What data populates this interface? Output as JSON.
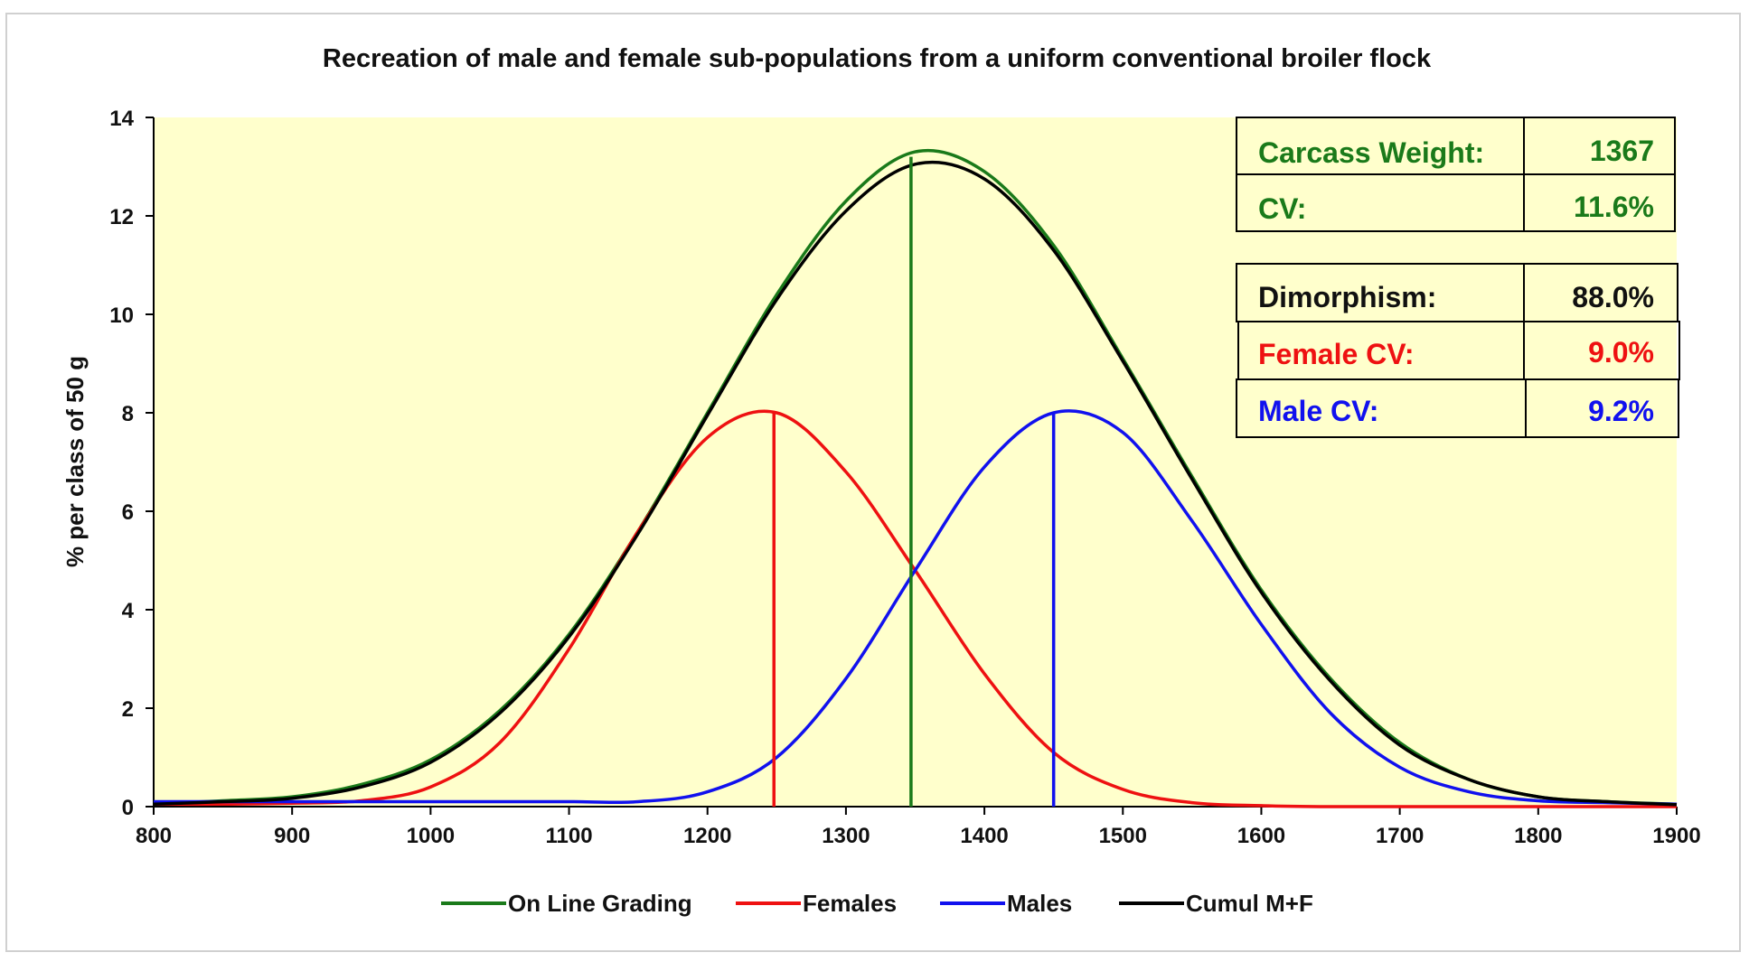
{
  "chart_data": {
    "type": "line",
    "title": "Recreation of male and female sub-populations from a uniform conventional broiler flock",
    "xlabel": "",
    "ylabel": "% per class of 50 g",
    "xlim": [
      800,
      1900
    ],
    "ylim": [
      0,
      14
    ],
    "x_ticks": [
      "800",
      "900",
      "1000",
      "1100",
      "1200",
      "1300",
      "1400",
      "1500",
      "1600",
      "1700",
      "1800",
      "1900"
    ],
    "y_ticks": [
      "0",
      "2",
      "4",
      "6",
      "8",
      "10",
      "12",
      "14"
    ],
    "x": [
      800,
      850,
      900,
      950,
      1000,
      1050,
      1100,
      1150,
      1200,
      1250,
      1300,
      1350,
      1400,
      1450,
      1500,
      1550,
      1600,
      1650,
      1700,
      1750,
      1800,
      1850,
      1900
    ],
    "series": [
      {
        "name": "On Line Grading",
        "color": "#1a7a1a",
        "values": [
          0.05,
          0.12,
          0.2,
          0.45,
          0.95,
          1.95,
          3.5,
          5.6,
          8.0,
          10.4,
          12.3,
          13.3,
          12.9,
          11.4,
          9.1,
          6.7,
          4.4,
          2.6,
          1.3,
          0.55,
          0.2,
          0.1,
          0.05
        ]
      },
      {
        "name": "Females",
        "color": "#ee1111",
        "values": [
          0.05,
          0.05,
          0.07,
          0.12,
          0.4,
          1.3,
          3.2,
          5.6,
          7.5,
          8.0,
          6.8,
          4.8,
          2.7,
          1.1,
          0.35,
          0.08,
          0.02,
          0.0,
          0.0,
          0.0,
          0.0,
          0.0,
          0.0
        ]
      },
      {
        "name": "Males",
        "color": "#1111ee",
        "values": [
          0.1,
          0.1,
          0.1,
          0.1,
          0.1,
          0.1,
          0.1,
          0.1,
          0.3,
          1.0,
          2.6,
          4.8,
          6.9,
          8.0,
          7.6,
          5.8,
          3.7,
          1.9,
          0.8,
          0.3,
          0.12,
          0.08,
          0.05
        ]
      },
      {
        "name": "Cumul M+F",
        "color": "#000000",
        "values": [
          0.05,
          0.1,
          0.17,
          0.4,
          0.9,
          1.9,
          3.45,
          5.55,
          7.95,
          10.3,
          12.1,
          13.05,
          12.75,
          11.3,
          9.05,
          6.65,
          4.35,
          2.55,
          1.25,
          0.55,
          0.2,
          0.1,
          0.04
        ]
      }
    ],
    "markers": [
      {
        "name": "On Line Grading mean",
        "x": 1347,
        "y": 13.2,
        "color": "#1a7a1a"
      },
      {
        "name": "Females mean",
        "x": 1248,
        "y": 8.0,
        "color": "#ee1111"
      },
      {
        "name": "Males mean",
        "x": 1450,
        "y": 8.0,
        "color": "#1111ee"
      }
    ],
    "legend_position": "bottom",
    "background_color": "#ffffcc"
  },
  "stats": {
    "carcass_weight_label": "Carcass Weight:",
    "carcass_weight_value": "1367",
    "cv_label": "CV:",
    "cv_value": "11.6%",
    "dimorphism_label": "Dimorphism:",
    "dimorphism_value": "88.0%",
    "female_cv_label": "Female CV:",
    "female_cv_value": "9.0%",
    "male_cv_label": "Male CV:",
    "male_cv_value": "9.2%",
    "colors": {
      "green": "#1a7a1a",
      "black": "#111111",
      "red": "#ee1111",
      "blue": "#1111ee"
    }
  }
}
